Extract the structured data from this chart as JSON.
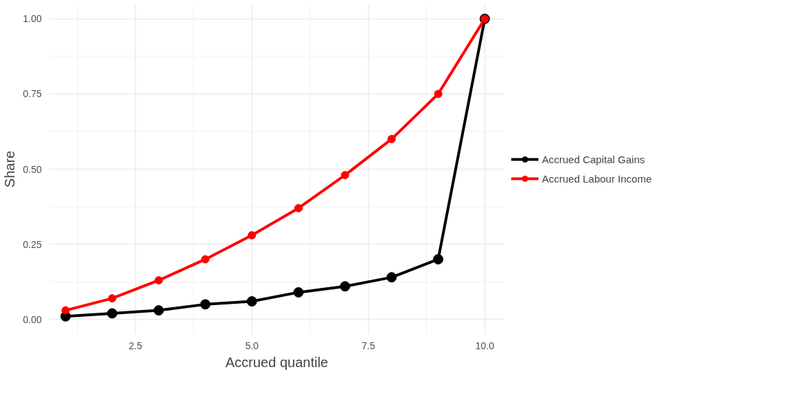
{
  "chart_data": {
    "type": "line",
    "xlabel": "Accrued quantile",
    "ylabel": "Share",
    "x": [
      1,
      2,
      3,
      4,
      5,
      6,
      7,
      8,
      9,
      10
    ],
    "series": [
      {
        "name": "Accrued Capital Gains",
        "color": "#000000",
        "values": [
          0.01,
          0.02,
          0.03,
          0.05,
          0.06,
          0.09,
          0.11,
          0.14,
          0.2,
          1.0
        ]
      },
      {
        "name": "Accrued Labour Income",
        "color": "#ff0000",
        "values": [
          0.03,
          0.07,
          0.13,
          0.2,
          0.28,
          0.37,
          0.48,
          0.6,
          0.75,
          1.0
        ]
      }
    ],
    "xlim": [
      0.65,
      10.42
    ],
    "ylim": [
      -0.05,
      1.05
    ],
    "xticks": [
      {
        "value": 2.5,
        "label": "2.5"
      },
      {
        "value": 5,
        "label": "5.0"
      },
      {
        "value": 7.5,
        "label": "7.5"
      },
      {
        "value": 10,
        "label": "10.0"
      }
    ],
    "yticks": [
      {
        "value": 0,
        "label": "0.00"
      },
      {
        "value": 0.25,
        "label": "0.25"
      },
      {
        "value": 0.5,
        "label": "0.50"
      },
      {
        "value": 0.75,
        "label": "0.75"
      },
      {
        "value": 1,
        "label": "1.00"
      }
    ],
    "grid": true,
    "legend": "right",
    "marker": "circle",
    "line_style": "solid"
  }
}
